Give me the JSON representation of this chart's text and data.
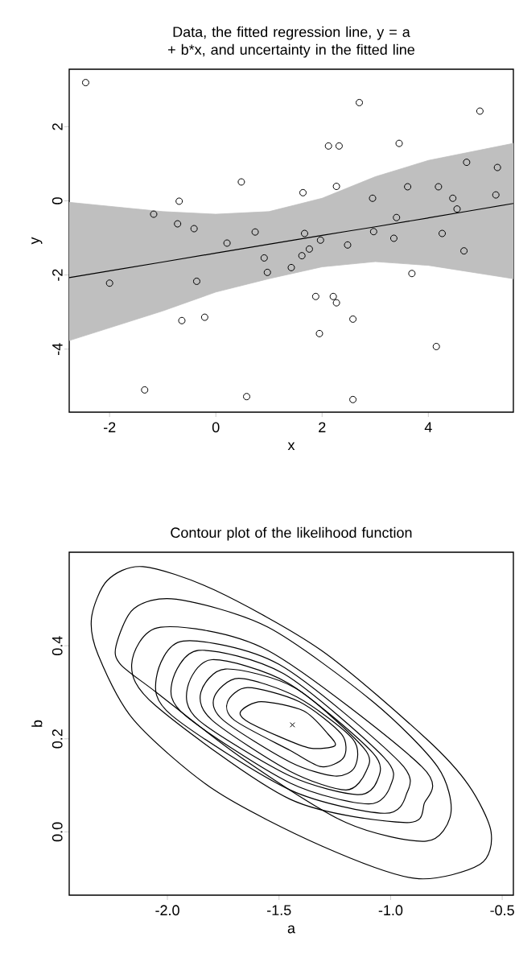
{
  "chart_data": [
    {
      "type": "scatter",
      "title": "Data, the fitted regression line, y = a + b*x, and uncertainty in the fitted line",
      "xlabel": "x",
      "ylabel": "y",
      "xlim": [
        -2.76,
        5.6
      ],
      "ylim": [
        -5.7,
        3.55
      ],
      "xticks": [
        -2,
        0,
        2,
        4
      ],
      "yticks": [
        -4,
        -2,
        0,
        2
      ],
      "series": [
        {
          "type": "line",
          "color": "#000000",
          "marker": "none",
          "x": [
            -2.76,
            -1,
            0,
            1,
            2,
            3,
            4,
            5.6
          ],
          "values": [
            -2.07,
            -1.65,
            -1.41,
            -1.17,
            -0.93,
            -0.7,
            -0.46,
            -0.07
          ],
          "lower": [
            -3.77,
            -2.97,
            -2.46,
            -2.1,
            -1.78,
            -1.64,
            -1.74,
            -2.1
          ],
          "upper": [
            -0.04,
            -0.29,
            -0.36,
            -0.29,
            0.07,
            0.65,
            1.09,
            1.55
          ]
        },
        {
          "color": "#000000",
          "marker": "circle",
          "x": [
            -2.45,
            2.7,
            4.97,
            2.12,
            2.32,
            3.45,
            0.48,
            1.64,
            2.27,
            4.72,
            5.3,
            -0.69,
            -1.17,
            -0.72,
            -0.41,
            0.74,
            1.67,
            2.95,
            3.61,
            4.19,
            4.46,
            4.54,
            5.27,
            3.4,
            2.97,
            4.26,
            3.35,
            0.21,
            0.91,
            0.97,
            1.42,
            1.62,
            1.76,
            1.97,
            2.48,
            4.67,
            -2.0,
            -0.36,
            3.69,
            1.88,
            2.21,
            2.27,
            2.58,
            -0.64,
            -0.21,
            1.95,
            4.15,
            -1.34,
            0.58,
            2.58
          ],
          "values": [
            3.19,
            2.65,
            2.42,
            1.48,
            1.48,
            1.55,
            0.51,
            0.22,
            0.39,
            1.04,
            0.9,
            -0.01,
            -0.36,
            -0.62,
            -0.75,
            -0.84,
            -0.88,
            0.07,
            0.38,
            0.38,
            0.07,
            -0.22,
            0.16,
            -0.45,
            -0.83,
            -0.88,
            -1.01,
            -1.14,
            -1.54,
            -1.93,
            -1.8,
            -1.48,
            -1.3,
            -1.06,
            -1.19,
            -1.35,
            -2.22,
            -2.17,
            -1.96,
            -2.58,
            -2.58,
            -2.75,
            -3.19,
            -3.23,
            -3.14,
            -3.58,
            -3.93,
            -5.1,
            -5.28,
            -5.36
          ]
        }
      ]
    },
    {
      "type": "scatter",
      "title": "Contour plot of the likelihood function",
      "xlabel": "a",
      "ylabel": "b",
      "xlim": [
        -2.44,
        -0.45
      ],
      "ylim": [
        -0.136,
        0.601
      ],
      "xticks": [
        {
          "value": -2,
          "label": "-2.0"
        },
        {
          "value": -1.5,
          "label": "-1.5"
        },
        {
          "value": -1,
          "label": "-1.0"
        },
        {
          "value": -0.5,
          "label": "-0.5"
        }
      ],
      "yticks": [
        {
          "value": 0,
          "label": "0.0"
        },
        {
          "value": 0.2,
          "label": "0.2"
        },
        {
          "value": 0.4,
          "label": "0.4"
        }
      ],
      "series": [
        {
          "color": "#000000",
          "marker": "cross",
          "x": [
            -1.44
          ],
          "values": [
            0.23
          ]
        }
      ]
    }
  ]
}
